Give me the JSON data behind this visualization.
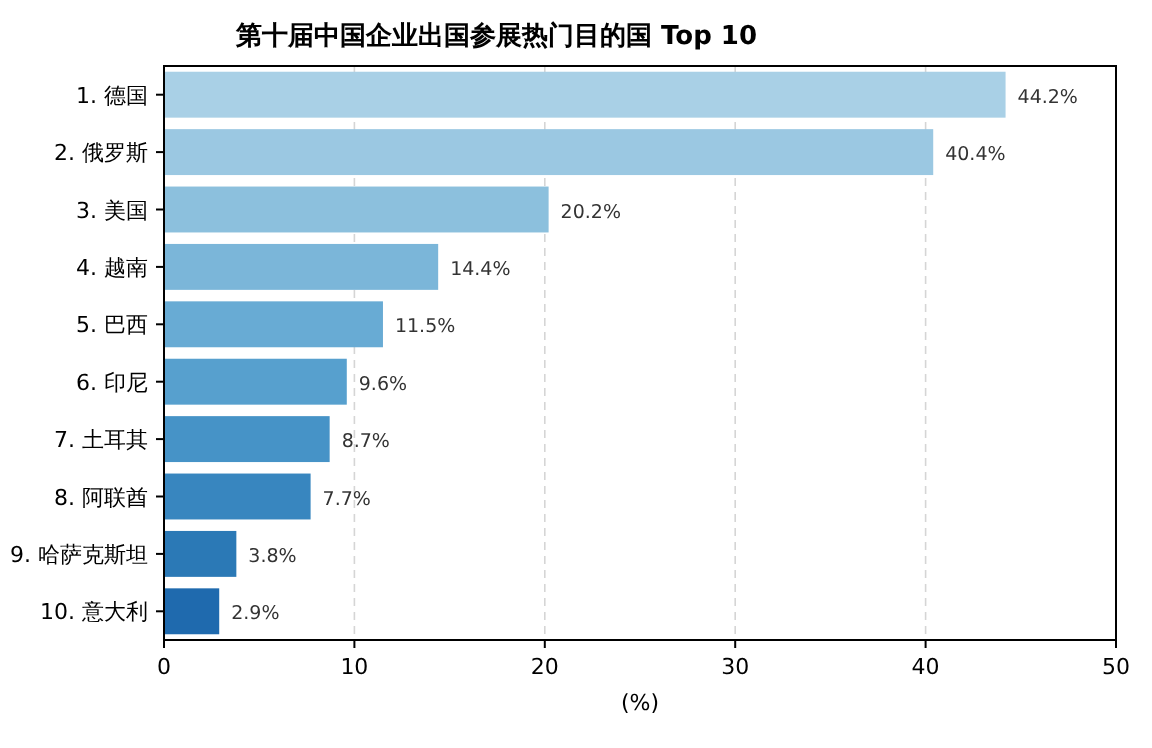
{
  "chart_data": {
    "type": "bar",
    "orientation": "horizontal",
    "title": "第十届中国企业出国参展热门目的国 Top 10",
    "xlabel": "(%)",
    "categories": [
      "1. 德国",
      "2. 俄罗斯",
      "3. 美国",
      "4. 越南",
      "5. 巴西",
      "6. 印尼",
      "7. 土耳其",
      "8. 阿联酋",
      "9. 哈萨克斯坦",
      "10. 意大利"
    ],
    "values": [
      44.2,
      40.4,
      20.2,
      14.4,
      11.5,
      9.6,
      8.7,
      7.7,
      3.8,
      2.9
    ],
    "value_labels": [
      "44.2%",
      "40.4%",
      "20.2%",
      "14.4%",
      "11.5%",
      "9.6%",
      "8.7%",
      "7.7%",
      "3.8%",
      "2.9%"
    ],
    "colors": [
      "#a9d0e6",
      "#9bc8e2",
      "#8cc0dd",
      "#7bb6d9",
      "#68abd4",
      "#57a0ce",
      "#4693c7",
      "#3886bf",
      "#2b79b6",
      "#1f6aae"
    ],
    "xlim": [
      0,
      50
    ],
    "xticks": [
      0,
      10,
      20,
      30,
      40,
      50
    ],
    "grid": "x"
  }
}
